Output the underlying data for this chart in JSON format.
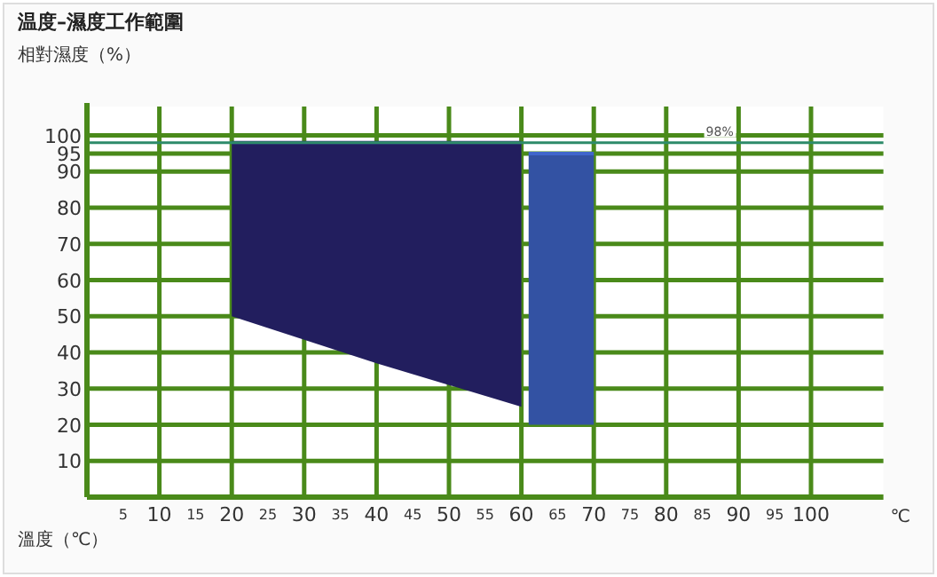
{
  "chart_data": {
    "type": "line",
    "title": "温度–濕度工作範圍",
    "ylabel": "相對濕度（%）",
    "xlabel": "溫度（℃）",
    "annotations": [
      "℃"
    ],
    "series": [
      {
        "x": [
          20,
          40,
          60
        ],
        "values": [
          98,
          98,
          98
        ],
        "lower": [
          50,
          37,
          25
        ],
        "upper": [
          98,
          98,
          98
        ],
        "color": "#2a2676"
      },
      {
        "x": [
          61,
          70
        ],
        "values": [
          95,
          95
        ],
        "lower": [
          20,
          20
        ],
        "upper": [
          95,
          95
        ],
        "color": "#4066cc"
      }
    ],
    "xlim": [
      0,
      110
    ],
    "ylim": [
      0,
      108
    ],
    "xticks": [
      5,
      10,
      15,
      20,
      25,
      30,
      35,
      40,
      45,
      50,
      55,
      60,
      65,
      70,
      75,
      80,
      85,
      90,
      95,
      100
    ],
    "yticks": [
      10,
      20,
      30,
      40,
      50,
      60,
      70,
      80,
      90,
      95,
      100
    ],
    "ref_lines": [
      {
        "axis": "y",
        "value": 98,
        "label": "98%",
        "color": "#2e8b6a"
      }
    ],
    "grid": true
  }
}
